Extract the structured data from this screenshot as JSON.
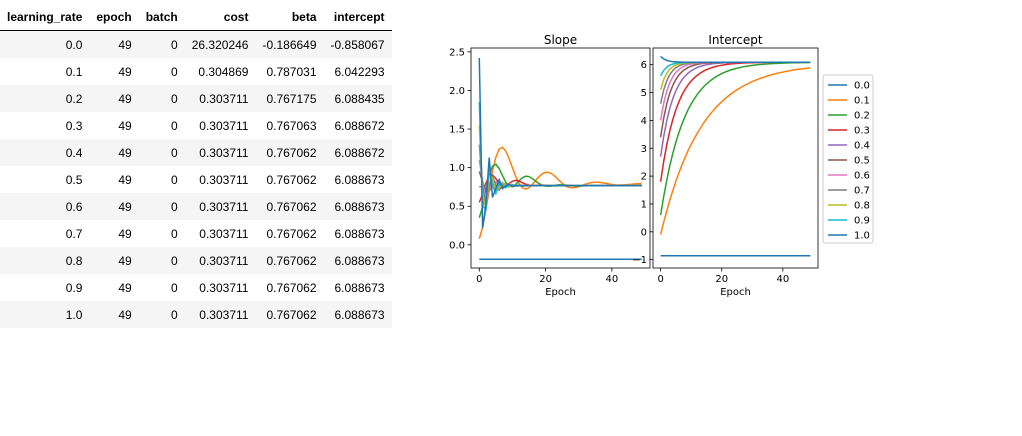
{
  "table": {
    "columns": [
      "learning_rate",
      "epoch",
      "batch",
      "cost",
      "beta",
      "intercept"
    ],
    "rows": [
      [
        "0.0",
        "49",
        "0",
        "26.320246",
        "-0.186649",
        "-0.858067"
      ],
      [
        "0.1",
        "49",
        "0",
        "0.304869",
        "0.787031",
        "6.042293"
      ],
      [
        "0.2",
        "49",
        "0",
        "0.303711",
        "0.767175",
        "6.088435"
      ],
      [
        "0.3",
        "49",
        "0",
        "0.303711",
        "0.767063",
        "6.088672"
      ],
      [
        "0.4",
        "49",
        "0",
        "0.303711",
        "0.767062",
        "6.088672"
      ],
      [
        "0.5",
        "49",
        "0",
        "0.303711",
        "0.767062",
        "6.088673"
      ],
      [
        "0.6",
        "49",
        "0",
        "0.303711",
        "0.767062",
        "6.088673"
      ],
      [
        "0.7",
        "49",
        "0",
        "0.303711",
        "0.767062",
        "6.088673"
      ],
      [
        "0.8",
        "49",
        "0",
        "0.303711",
        "0.767062",
        "6.088673"
      ],
      [
        "0.9",
        "49",
        "0",
        "0.303711",
        "0.767062",
        "6.088673"
      ],
      [
        "1.0",
        "49",
        "0",
        "0.303711",
        "0.767062",
        "6.088673"
      ]
    ]
  },
  "chart_data": [
    {
      "type": "line",
      "title": "Slope",
      "xlabel": "Epoch",
      "ylabel": "",
      "xlim": [
        -2.5,
        51.5
      ],
      "ylim": [
        -0.3,
        2.55
      ],
      "xticks": [
        0,
        20,
        40
      ],
      "yticks": [
        0.0,
        0.5,
        1.0,
        1.5,
        2.0,
        2.5
      ],
      "ytick_labels": [
        "0.0",
        "0.5",
        "1.0",
        "1.5",
        "2.0",
        "2.5"
      ],
      "grid": false,
      "x": [
        0,
        49
      ],
      "series": [
        {
          "name": "0.0",
          "color": "#1f77b4",
          "start": -0.187,
          "final": -0.187
        },
        {
          "name": "0.1",
          "color": "#ff7f0e",
          "start": 0.08,
          "final": 0.787
        },
        {
          "name": "0.2",
          "color": "#2ca02c",
          "start": 0.35,
          "final": 0.767
        },
        {
          "name": "0.3",
          "color": "#d62728",
          "start": 0.55,
          "final": 0.767
        },
        {
          "name": "0.4",
          "color": "#9467bd",
          "start": 0.75,
          "final": 0.767
        },
        {
          "name": "0.5",
          "color": "#8c564b",
          "start": 0.95,
          "final": 0.767
        },
        {
          "name": "0.6",
          "color": "#e377c2",
          "start": 1.1,
          "final": 0.767
        },
        {
          "name": "0.7",
          "color": "#7f7f7f",
          "start": 1.3,
          "final": 0.767
        },
        {
          "name": "0.8",
          "color": "#bcbd22",
          "start": 1.55,
          "final": 0.767
        },
        {
          "name": "0.9",
          "color": "#17becf",
          "start": 1.85,
          "final": 0.767
        },
        {
          "name": "1.0",
          "color": "#1f77b4",
          "start": 2.42,
          "final": 0.767
        }
      ]
    },
    {
      "type": "line",
      "title": "Intercept",
      "xlabel": "Epoch",
      "ylabel": "",
      "xlim": [
        -2.5,
        51.5
      ],
      "ylim": [
        -1.3,
        6.6
      ],
      "xticks": [
        0,
        20,
        40
      ],
      "yticks": [
        -1,
        0,
        1,
        2,
        3,
        4,
        5,
        6
      ],
      "ytick_labels": [
        "−1",
        "0",
        "1",
        "2",
        "3",
        "4",
        "5",
        "6"
      ],
      "grid": false,
      "x": [
        0,
        49
      ],
      "series": [
        {
          "name": "0.0",
          "color": "#1f77b4",
          "start": -0.858,
          "final": -0.858
        },
        {
          "name": "0.1",
          "color": "#ff7f0e",
          "start": -0.1,
          "final": 6.042
        },
        {
          "name": "0.2",
          "color": "#2ca02c",
          "start": 0.6,
          "final": 6.088
        },
        {
          "name": "0.3",
          "color": "#d62728",
          "start": 1.8,
          "final": 6.089
        },
        {
          "name": "0.4",
          "color": "#9467bd",
          "start": 2.7,
          "final": 6.089
        },
        {
          "name": "0.5",
          "color": "#8c564b",
          "start": 3.4,
          "final": 6.089
        },
        {
          "name": "0.6",
          "color": "#e377c2",
          "start": 4.0,
          "final": 6.089
        },
        {
          "name": "0.7",
          "color": "#7f7f7f",
          "start": 4.6,
          "final": 6.089
        },
        {
          "name": "0.8",
          "color": "#bcbd22",
          "start": 5.1,
          "final": 6.089
        },
        {
          "name": "0.9",
          "color": "#17becf",
          "start": 5.6,
          "final": 6.089
        },
        {
          "name": "1.0",
          "color": "#1f77b4",
          "start": 6.3,
          "final": 6.089
        }
      ]
    }
  ],
  "legend": {
    "placement": "right",
    "entries": [
      "0.0",
      "0.1",
      "0.2",
      "0.3",
      "0.4",
      "0.5",
      "0.6",
      "0.7",
      "0.8",
      "0.9",
      "1.0"
    ]
  }
}
